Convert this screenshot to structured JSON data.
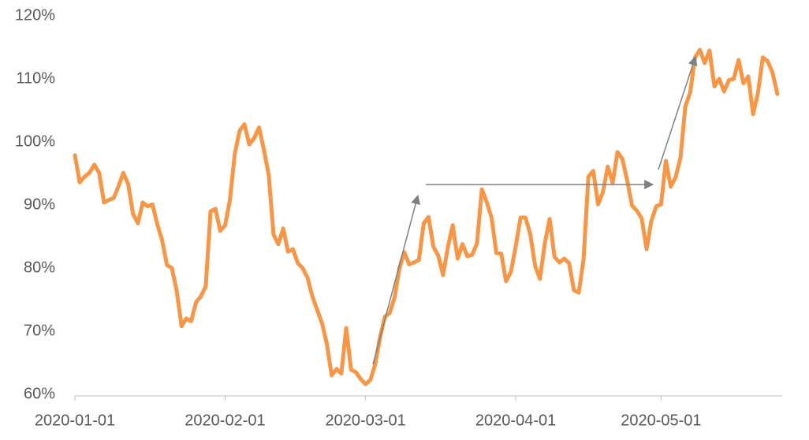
{
  "chart_data": {
    "type": "line",
    "x": [
      "2020-01-01",
      "2020-01-02",
      "2020-01-03",
      "2020-01-04",
      "2020-01-05",
      "2020-01-06",
      "2020-01-07",
      "2020-01-08",
      "2020-01-09",
      "2020-01-10",
      "2020-01-11",
      "2020-01-12",
      "2020-01-13",
      "2020-01-14",
      "2020-01-15",
      "2020-01-16",
      "2020-01-17",
      "2020-01-18",
      "2020-01-19",
      "2020-01-20",
      "2020-01-21",
      "2020-01-22",
      "2020-01-23",
      "2020-01-24",
      "2020-01-25",
      "2020-01-26",
      "2020-01-27",
      "2020-01-28",
      "2020-01-29",
      "2020-01-30",
      "2020-01-31",
      "2020-02-01",
      "2020-02-02",
      "2020-02-03",
      "2020-02-04",
      "2020-02-05",
      "2020-02-06",
      "2020-02-07",
      "2020-02-08",
      "2020-02-09",
      "2020-02-10",
      "2020-02-11",
      "2020-02-12",
      "2020-02-13",
      "2020-02-14",
      "2020-02-15",
      "2020-02-16",
      "2020-02-17",
      "2020-02-18",
      "2020-02-19",
      "2020-02-20",
      "2020-02-21",
      "2020-02-22",
      "2020-02-23",
      "2020-02-24",
      "2020-02-25",
      "2020-02-26",
      "2020-02-27",
      "2020-02-28",
      "2020-02-29",
      "2020-03-01",
      "2020-03-02",
      "2020-03-03",
      "2020-03-04",
      "2020-03-05",
      "2020-03-06",
      "2020-03-07",
      "2020-03-08",
      "2020-03-09",
      "2020-03-10",
      "2020-03-11",
      "2020-03-12",
      "2020-03-13",
      "2020-03-14",
      "2020-03-15",
      "2020-03-16",
      "2020-03-17",
      "2020-03-18",
      "2020-03-19",
      "2020-03-20",
      "2020-03-21",
      "2020-03-22",
      "2020-03-23",
      "2020-03-24",
      "2020-03-25",
      "2020-03-26",
      "2020-03-27",
      "2020-03-28",
      "2020-03-29",
      "2020-03-30",
      "2020-03-31",
      "2020-04-01",
      "2020-04-02",
      "2020-04-03",
      "2020-04-04",
      "2020-04-05",
      "2020-04-06",
      "2020-04-07",
      "2020-04-08",
      "2020-04-09",
      "2020-04-10",
      "2020-04-11",
      "2020-04-12",
      "2020-04-13",
      "2020-04-14",
      "2020-04-15",
      "2020-04-16",
      "2020-04-17",
      "2020-04-18",
      "2020-04-19",
      "2020-04-20",
      "2020-04-21",
      "2020-04-22",
      "2020-04-23",
      "2020-04-24",
      "2020-04-25",
      "2020-04-26",
      "2020-04-27",
      "2020-04-28",
      "2020-04-29",
      "2020-04-30",
      "2020-05-01",
      "2020-05-02",
      "2020-05-03",
      "2020-05-04",
      "2020-05-05",
      "2020-05-06",
      "2020-05-07",
      "2020-05-08",
      "2020-05-09",
      "2020-05-10",
      "2020-05-11",
      "2020-05-12",
      "2020-05-13",
      "2020-05-14",
      "2020-05-15",
      "2020-05-16",
      "2020-05-17",
      "2020-05-18",
      "2020-05-19",
      "2020-05-20",
      "2020-05-21",
      "2020-05-22",
      "2020-05-23",
      "2020-05-24",
      "2020-05-25"
    ],
    "values": [
      97.9,
      93.6,
      94.5,
      95.1,
      96.4,
      95.1,
      90.4,
      90.8,
      91.1,
      93,
      95.1,
      93.3,
      88.6,
      87.1,
      90.4,
      89.8,
      90.1,
      87,
      84.4,
      80.5,
      80,
      76.5,
      70.8,
      72,
      71.6,
      74.6,
      75.5,
      77.1,
      89,
      89.4,
      85.9,
      86.8,
      90.8,
      98.1,
      101.8,
      102.8,
      99.6,
      100.6,
      102.3,
      98.8,
      94.8,
      85.3,
      83.8,
      86.3,
      82.6,
      83,
      80.8,
      80,
      78.5,
      75.6,
      73.4,
      71.3,
      68,
      63,
      64,
      63.3,
      70.5,
      63.9,
      63.5,
      62.4,
      61.6,
      62.3,
      64.8,
      69.1,
      72.3,
      72.9,
      75.4,
      80,
      82.5,
      80.6,
      80.9,
      81.3,
      87.1,
      88.1,
      83.4,
      82,
      78.9,
      83.4,
      86.8,
      81.5,
      83.8,
      81.9,
      82.1,
      83.9,
      92.5,
      90.5,
      88,
      82.4,
      82.3,
      77.9,
      79.4,
      83.5,
      88,
      88,
      85.4,
      80.3,
      78.3,
      84,
      87.8,
      81.8,
      80.9,
      81.5,
      80.8,
      76.5,
      76.1,
      81.4,
      94.5,
      95.4,
      90.1,
      92.1,
      96.1,
      93.5,
      98.4,
      97.3,
      93.9,
      89.9,
      89.1,
      87.9,
      83,
      87.5,
      89.8,
      90.1,
      97,
      92.9,
      94.4,
      97.5,
      105.6,
      107.8,
      113.4,
      114.6,
      112.5,
      114.5,
      108.8,
      110,
      108,
      109.8,
      110,
      113,
      109.3,
      110.4,
      104.4,
      107.8,
      113.4,
      112.8,
      111,
      107.6
    ],
    "color": "#f79646",
    "xlim": [
      "2020-01-01",
      "2020-05-26"
    ],
    "xticks": [
      "2020-01-01",
      "2020-02-01",
      "2020-03-01",
      "2020-04-01",
      "2020-05-01"
    ],
    "ylim": [
      60,
      120
    ],
    "yticks": [
      {
        "value": 60,
        "label": "60%"
      },
      {
        "value": 70,
        "label": "70%"
      },
      {
        "value": 80,
        "label": "80%"
      },
      {
        "value": 90,
        "label": "90%"
      },
      {
        "value": 100,
        "label": "100%"
      },
      {
        "value": 110,
        "label": "110%"
      },
      {
        "value": 120,
        "label": "120%"
      }
    ],
    "grid": false
  }
}
